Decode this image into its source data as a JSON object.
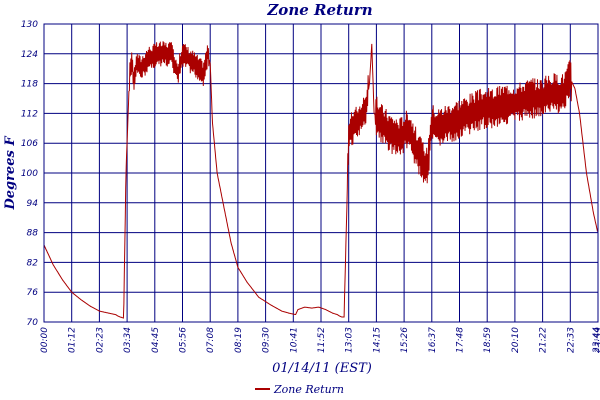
{
  "chart_data": {
    "type": "line",
    "title": "Zone Return",
    "xlabel": "01/14/11 (EST)",
    "ylabel": "Degrees F",
    "ylim": [
      70,
      130
    ],
    "yticks": [
      "70",
      "76",
      "82",
      "88",
      "94",
      "100",
      "106",
      "112",
      "118",
      "124",
      "130"
    ],
    "xticks": [
      "00:00",
      "01:12",
      "02:23",
      "03:34",
      "04:45",
      "05:56",
      "07:08",
      "08:19",
      "09:30",
      "10:41",
      "11:52",
      "13:03",
      "14:15",
      "15:26",
      "16:37",
      "17:48",
      "18:59",
      "20:10",
      "21:22",
      "22:33",
      "23:44",
      "23:59"
    ],
    "grid": true,
    "legend": "bottom-center",
    "series": [
      {
        "name": "Zone Return",
        "color": "#aa0000",
        "x": [
          0,
          0.4,
          0.8,
          1.2,
          1.6,
          2.0,
          2.4,
          2.8,
          3.1,
          3.2,
          3.3,
          3.45,
          3.55,
          3.7,
          3.8,
          3.9,
          4.0,
          4.2,
          4.5,
          5.0,
          5.5,
          5.8,
          6.0,
          6.5,
          6.9,
          7.1,
          7.2,
          7.3,
          7.5,
          7.8,
          8.1,
          8.4,
          8.8,
          9.3,
          9.8,
          10.3,
          10.6,
          10.9,
          11.0,
          11.3,
          11.6,
          11.9,
          12.2,
          12.5,
          12.7,
          12.8,
          12.9,
          13.0,
          13.2,
          13.5,
          13.9,
          14.1,
          14.2,
          14.3,
          14.6,
          15.0,
          15.4,
          15.8,
          16.2,
          16.6,
          16.8,
          17.0,
          17.5,
          18.0,
          18.5,
          19.0,
          19.5,
          20.0,
          20.5,
          21.0,
          21.5,
          22.0,
          22.5,
          22.8,
          23.0,
          23.2,
          23.5,
          23.8,
          23.99
        ],
        "y": [
          85.5,
          81.5,
          78.5,
          76.0,
          74.5,
          73.2,
          72.2,
          71.8,
          71.5,
          71.2,
          71.0,
          70.8,
          100,
          119,
          123,
          118,
          122,
          121,
          123,
          124,
          124,
          120,
          124,
          122,
          120,
          124,
          122,
          110,
          100,
          93,
          86,
          81,
          78,
          75,
          73.5,
          72.2,
          71.8,
          71.5,
          72.5,
          73.0,
          72.8,
          73.0,
          72.5,
          71.8,
          71.5,
          71.2,
          71.0,
          71.0,
          108,
          110,
          112,
          118,
          126,
          112,
          110,
          108,
          107,
          109,
          104,
          101,
          110,
          109,
          110,
          111,
          112,
          113,
          113,
          114,
          114,
          115,
          115,
          116,
          116,
          119,
          117,
          112,
          100,
          92,
          88
        ]
      }
    ]
  }
}
